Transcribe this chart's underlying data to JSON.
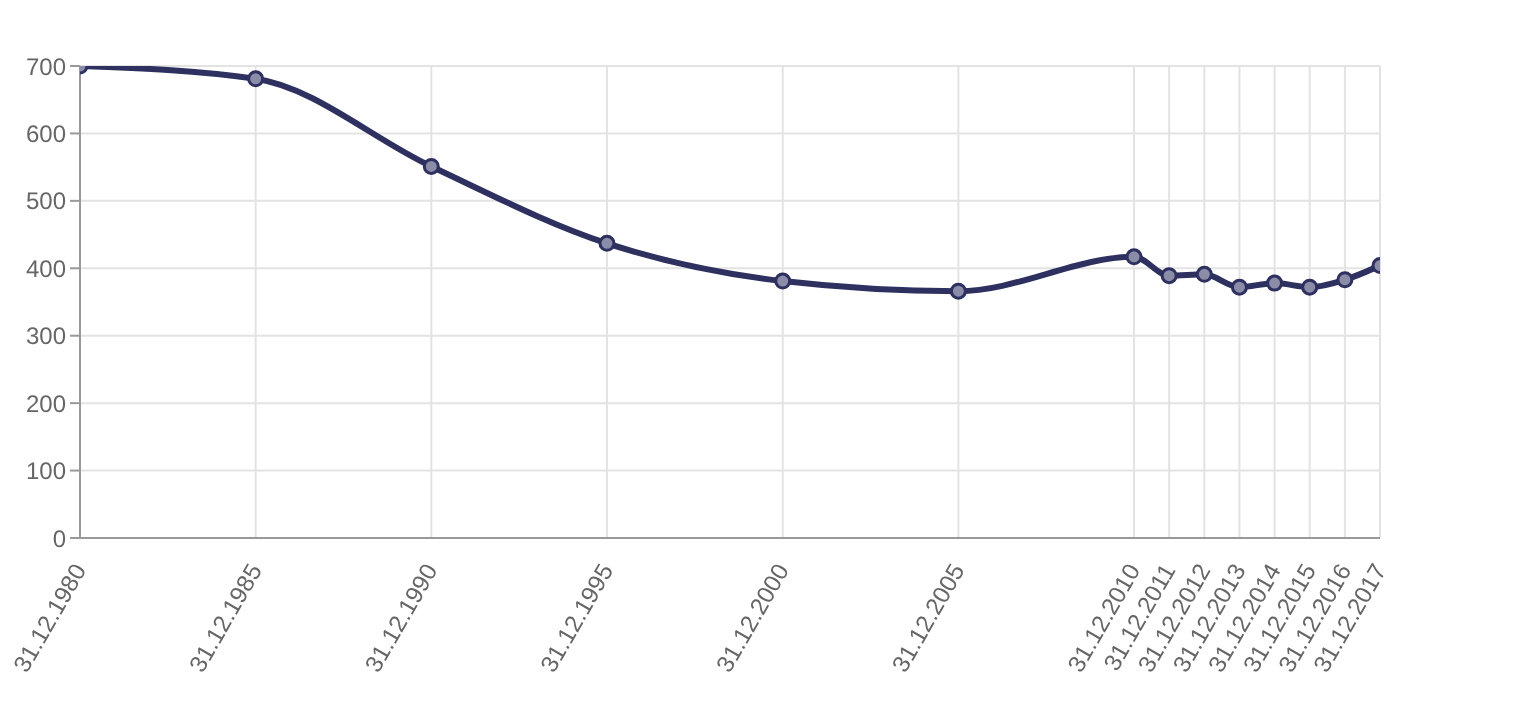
{
  "chart_data": {
    "type": "line",
    "x": [
      "1980-12-31",
      "1985-12-31",
      "1990-12-31",
      "1995-12-31",
      "2000-12-31",
      "2005-12-31",
      "2010-12-31",
      "2011-12-31",
      "2012-12-31",
      "2013-12-31",
      "2014-12-31",
      "2015-12-31",
      "2016-12-31",
      "2017-12-31"
    ],
    "series": [
      {
        "color": "#2e3160",
        "values": [
          700,
          681,
          551,
          437,
          381,
          366,
          417,
          389,
          391,
          372,
          378,
          372,
          383,
          404
        ]
      }
    ],
    "xlim": [
      "1980-12-31",
      "2017-12-31"
    ],
    "xticks": [
      {
        "value": "1980-12-31",
        "label": "31.12.1980"
      },
      {
        "value": "1985-12-31",
        "label": "31.12.1985"
      },
      {
        "value": "1990-12-31",
        "label": "31.12.1990"
      },
      {
        "value": "1995-12-31",
        "label": "31.12.1995"
      },
      {
        "value": "2000-12-31",
        "label": "31.12.2000"
      },
      {
        "value": "2005-12-31",
        "label": "31.12.2005"
      },
      {
        "value": "2010-12-31",
        "label": "31.12.2010"
      },
      {
        "value": "2011-12-31",
        "label": "31.12.2011"
      },
      {
        "value": "2012-12-31",
        "label": "31.12.2012"
      },
      {
        "value": "2013-12-31",
        "label": "31.12.2013"
      },
      {
        "value": "2014-12-31",
        "label": "31.12.2014"
      },
      {
        "value": "2015-12-31",
        "label": "31.12.2015"
      },
      {
        "value": "2016-12-31",
        "label": "31.12.2016"
      },
      {
        "value": "2017-12-31",
        "label": "31.12.2017"
      }
    ],
    "ylim": [
      0,
      700
    ],
    "yticks": [
      0,
      100,
      200,
      300,
      400,
      500,
      600,
      700
    ],
    "grid": true,
    "marker": "circle",
    "line_style": "solid",
    "legend": false
  }
}
